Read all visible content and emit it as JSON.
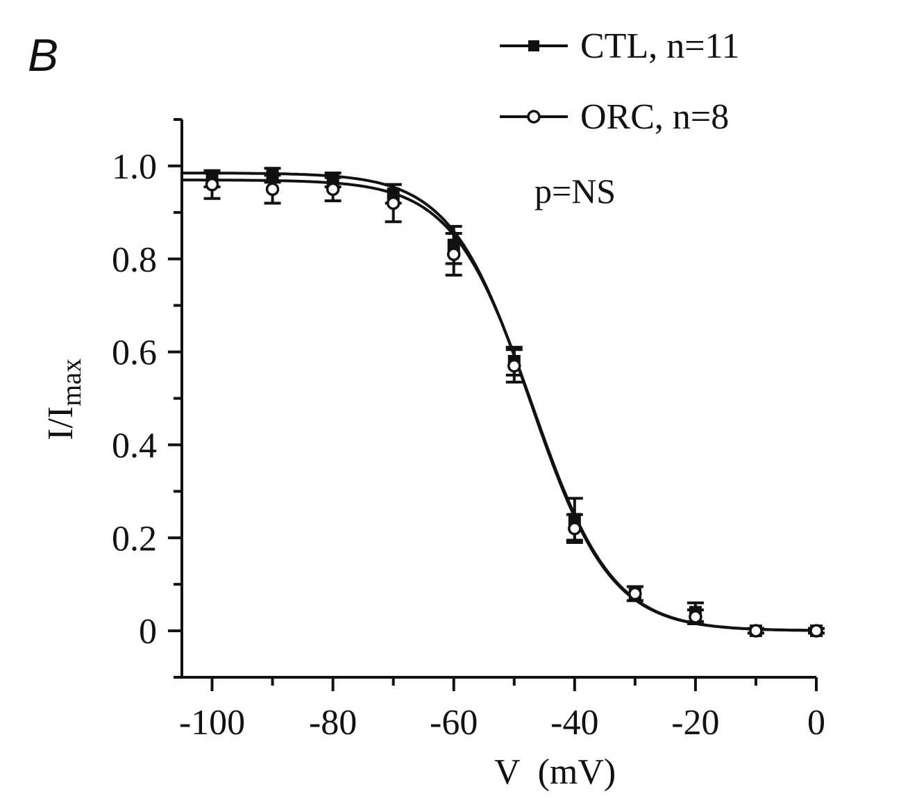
{
  "panel_label": "B",
  "chart_data": {
    "type": "line",
    "xlabel": "V  (mV)",
    "ylabel_main": "I/I",
    "ylabel_sub": "max",
    "xlim": [
      -105,
      0
    ],
    "ylim": [
      -0.1,
      1.1
    ],
    "x_ticks": [
      -100,
      -80,
      -60,
      -40,
      -20,
      0
    ],
    "x_tick_labels": [
      "-100",
      "-80",
      "-60",
      "-40",
      "-20",
      "0"
    ],
    "y_ticks": [
      0,
      0.2,
      0.4,
      0.6,
      0.8,
      1.0
    ],
    "y_tick_labels": [
      "0",
      "0.2",
      "0.4",
      "0.6",
      "0.8",
      "1.0"
    ],
    "annotation": "p=NS",
    "legend_position": "top-right",
    "series": [
      {
        "name": "CTL, n=11",
        "marker": "filled-square",
        "x": [
          -100,
          -90,
          -80,
          -70,
          -60,
          -50,
          -40,
          -30,
          -20,
          -10,
          0
        ],
        "y": [
          0.97,
          0.98,
          0.97,
          0.94,
          0.83,
          0.58,
          0.24,
          0.08,
          0.04,
          0.0,
          0.0
        ],
        "err": [
          0.015,
          0.015,
          0.015,
          0.02,
          0.04,
          0.03,
          0.045,
          0.015,
          0.02,
          0.005,
          0.005
        ],
        "fit": {
          "v_half": -47.3,
          "slope": 6.6,
          "top": 0.985
        }
      },
      {
        "name": "ORC, n=8",
        "marker": "open-circle",
        "x": [
          -100,
          -90,
          -80,
          -70,
          -60,
          -50,
          -40,
          -30,
          -20,
          -10,
          0
        ],
        "y": [
          0.96,
          0.95,
          0.95,
          0.92,
          0.81,
          0.57,
          0.22,
          0.08,
          0.03,
          0.0,
          0.0
        ],
        "err": [
          0.03,
          0.03,
          0.025,
          0.04,
          0.045,
          0.035,
          0.03,
          0.015,
          0.015,
          0.005,
          0.005
        ],
        "fit": {
          "v_half": -47.0,
          "slope": 6.6,
          "top": 0.97
        }
      }
    ]
  }
}
